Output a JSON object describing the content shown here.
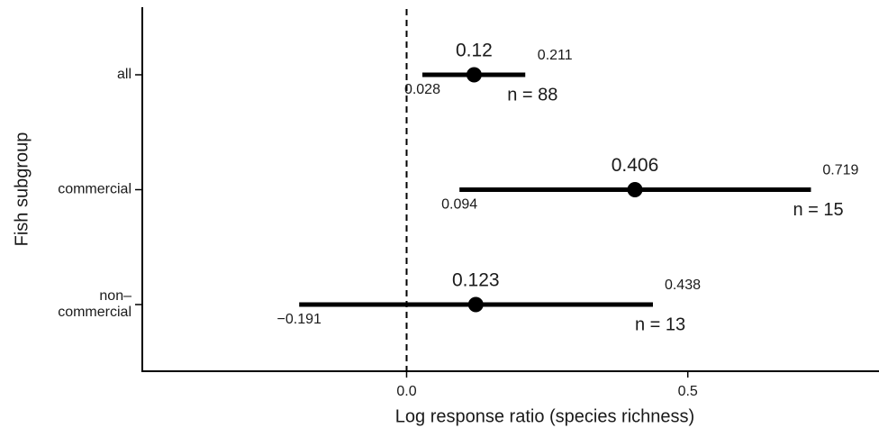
{
  "chart_data": {
    "type": "forest",
    "xlabel": "Log response ratio (species richness)",
    "ylabel": "Fish subgroup",
    "categories": [
      "all",
      "commercial",
      "non–\ncommercial"
    ],
    "values": [
      0.12,
      0.406,
      0.123
    ],
    "lower": [
      0.028,
      0.094,
      -0.191
    ],
    "lower_labels": [
      "0.028",
      "0.094",
      "−0.191"
    ],
    "upper": [
      0.211,
      0.719,
      0.438
    ],
    "n": [
      88,
      15,
      13
    ],
    "n_labels": [
      "n = 88",
      "n = 15",
      "n = 13"
    ],
    "color": "#000000",
    "xlim": [
      -0.47,
      0.84
    ],
    "xticks": [
      {
        "value": 0,
        "label": "0.0"
      },
      {
        "value": 0.5,
        "label": "0.5"
      }
    ],
    "vline": 0
  }
}
